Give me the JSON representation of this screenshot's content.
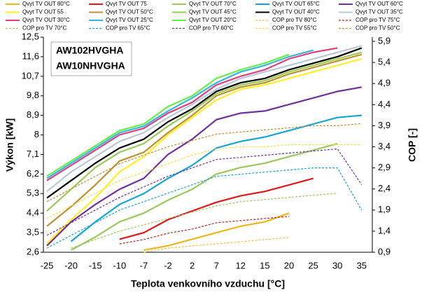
{
  "chart_data": {
    "type": "line",
    "annotations": [
      "AW102HVGHA",
      "AW10NHVGHA"
    ],
    "ylabel": "Výkon [kW]",
    "y2label": "COP [-]",
    "xlabel": "Teplota venkovního vzduchu [°C]",
    "categories": [
      "-25",
      "-20",
      "-15",
      "-10",
      "-7",
      "-2",
      "2",
      "7",
      "12",
      "15",
      "20",
      "25",
      "30",
      "35"
    ],
    "ylim": [
      2.6,
      12.5
    ],
    "yticks": [
      {
        "value": 2.6,
        "label": "2,6"
      },
      {
        "value": 3.5,
        "label": "3,5"
      },
      {
        "value": 4.4,
        "label": "4,4"
      },
      {
        "value": 5.3,
        "label": "5,3"
      },
      {
        "value": 6.2,
        "label": "6,2"
      },
      {
        "value": 7.1,
        "label": "7,1"
      },
      8,
      {
        "value": 8.9,
        "label": "8,9"
      },
      {
        "value": 9.8,
        "label": "9,8"
      },
      {
        "value": 10.7,
        "label": "10,7"
      },
      {
        "value": 11.6,
        "label": "11,6"
      },
      {
        "value": 12.5,
        "label": "12,5"
      }
    ],
    "y2lim": [
      0.9,
      6.0
    ],
    "y2ticks": [
      {
        "value": 0.9,
        "label": "0,9"
      },
      {
        "value": 1.4,
        "label": "1,4"
      },
      {
        "value": 1.9,
        "label": "1,9"
      },
      {
        "value": 2.4,
        "label": "2,4"
      },
      {
        "value": 2.9,
        "label": "2,9"
      },
      {
        "value": 3.4,
        "label": "3,4"
      },
      {
        "value": 3.9,
        "label": "3,9"
      },
      {
        "value": 4.4,
        "label": "4,4"
      },
      {
        "value": 4.9,
        "label": "4,9"
      },
      {
        "value": 5.4,
        "label": "5,4"
      },
      {
        "value": 5.9,
        "label": "5,9"
      }
    ],
    "series": [
      {
        "name": "Qvyt TV OUT 80°C",
        "color": "#f0b41e",
        "values": [
          null,
          null,
          null,
          null,
          2.7,
          2.9,
          3.2,
          3.5,
          3.8,
          4.0,
          4.4,
          null,
          null,
          null
        ]
      },
      {
        "name": "Qvyt TV OUT 75",
        "color": "#e01818",
        "values": [
          null,
          null,
          null,
          3.2,
          3.5,
          4.1,
          4.5,
          4.9,
          5.2,
          5.4,
          5.7,
          6.0,
          null,
          null
        ]
      },
      {
        "name": "Qvyt TV OUT 70°C",
        "color": "#9bc85a",
        "values": [
          null,
          2.7,
          3.3,
          4.0,
          4.4,
          5.0,
          5.5,
          6.2,
          6.5,
          6.7,
          7.0,
          7.3,
          7.6,
          null
        ]
      },
      {
        "name": "Qvyt TV OUT 65°C",
        "color": "#14a5d8",
        "values": [
          null,
          3.1,
          4.0,
          4.8,
          5.3,
          6.0,
          6.6,
          7.4,
          7.7,
          7.9,
          8.2,
          8.5,
          8.8,
          8.9
        ]
      },
      {
        "name": "Qvyt TV OUT 60°C",
        "color": "#7030a0",
        "values": [
          2.9,
          4.0,
          4.8,
          5.5,
          6.0,
          7.1,
          7.8,
          8.7,
          9.0,
          9.1,
          9.4,
          9.7,
          10.0,
          10.2
        ]
      },
      {
        "name": "Qvyt TV OUT 55",
        "color": "#ffee2a",
        "values": [
          3.0,
          4.1,
          5.1,
          6.3,
          7.0,
          8.0,
          8.8,
          9.6,
          10.1,
          10.3,
          10.6,
          10.9,
          11.2,
          11.5
        ]
      },
      {
        "name": "Qvyt TV OUT 50°C",
        "color": "#c09030",
        "values": [
          3.8,
          4.7,
          5.7,
          6.8,
          7.2,
          8.1,
          8.9,
          9.8,
          10.2,
          10.4,
          10.8,
          11.1,
          11.4,
          11.7
        ]
      },
      {
        "name": "Qvyt TV OUT 45°C",
        "color": "#99cc55",
        "values": [
          4.5,
          5.5,
          6.5,
          7.2,
          7.6,
          8.4,
          9.1,
          9.9,
          10.3,
          10.5,
          10.9,
          11.2,
          11.5,
          11.8
        ]
      },
      {
        "name": "Qvyt TV OUT 40°C",
        "color": "#000000",
        "values": [
          5.1,
          5.9,
          6.7,
          7.4,
          7.8,
          8.6,
          9.2,
          10.0,
          10.4,
          10.6,
          11.0,
          11.3,
          11.6,
          12.0
        ]
      },
      {
        "name": "Qvyt TV OUT 35°C",
        "color": "#b8c8d8",
        "values": [
          5.4,
          6.3,
          7.0,
          7.7,
          8.1,
          8.8,
          9.4,
          10.1,
          10.6,
          10.9,
          11.2,
          11.5,
          11.8,
          12.1
        ]
      },
      {
        "name": "Qvyt TV OUT 30°C",
        "color": "#e0407a",
        "values": [
          5.9,
          6.6,
          7.3,
          8.0,
          8.3,
          9.0,
          9.5,
          10.3,
          10.7,
          11.0,
          11.5,
          11.8,
          12.0,
          null
        ]
      },
      {
        "name": "Qvyt TV OUT 25°C",
        "color": "#30b8e0",
        "values": [
          6.0,
          6.7,
          7.4,
          8.1,
          8.4,
          9.1,
          9.7,
          10.4,
          10.9,
          11.2,
          11.6,
          11.9,
          null,
          null
        ]
      },
      {
        "name": "Qvyt TV OUT 20°C",
        "color": "#66ee44",
        "values": [
          6.1,
          6.8,
          7.5,
          8.2,
          8.5,
          9.3,
          9.8,
          10.6,
          11.0,
          11.3,
          11.7,
          null,
          null,
          null
        ]
      },
      {
        "name": "COP pro TV 80°C",
        "color": "#f0c040",
        "axis": "y2",
        "values": [
          null,
          null,
          null,
          null,
          0.9,
          1.0,
          1.05,
          1.1,
          1.15,
          1.2,
          1.25,
          null,
          null,
          null
        ]
      },
      {
        "name": "COP pro TV 75°C",
        "color": "#c02020",
        "axis": "y2",
        "values": [
          null,
          null,
          null,
          1.1,
          1.2,
          1.35,
          1.45,
          1.6,
          1.65,
          1.7,
          1.75,
          null,
          null,
          null
        ]
      },
      {
        "name": "COP pro TV 70°C",
        "color": "#9bc85a",
        "axis": "y2",
        "values": [
          null,
          1.0,
          1.2,
          1.4,
          1.55,
          1.7,
          1.85,
          2.0,
          2.1,
          2.15,
          2.2,
          2.25,
          2.3,
          null
        ]
      },
      {
        "name": "COP pro TV 65°C",
        "color": "#14a5d8",
        "axis": "y2",
        "values": [
          1.0,
          1.3,
          1.6,
          1.9,
          2.1,
          2.3,
          2.5,
          2.7,
          2.75,
          2.8,
          2.85,
          2.9,
          2.9,
          1.9
        ]
      },
      {
        "name": "COP pro TV 60°C",
        "color": "#7030a0",
        "axis": "y2",
        "values": [
          1.3,
          1.6,
          1.9,
          2.2,
          2.45,
          2.7,
          2.9,
          3.1,
          3.15,
          3.2,
          3.25,
          3.3,
          3.35,
          2.5
        ]
      },
      {
        "name": "COP pro TV 55°C",
        "color": "#f0e040",
        "axis": "y2",
        "values": [
          1.7,
          2.0,
          2.3,
          2.6,
          2.8,
          3.0,
          3.2,
          3.35,
          3.4,
          3.4,
          3.45,
          3.45,
          3.45,
          3.45
        ]
      },
      {
        "name": "COP pro TV 50°C",
        "color": "#c09030",
        "axis": "y2",
        "values": [
          2.1,
          2.4,
          2.7,
          3.0,
          3.2,
          3.4,
          3.55,
          3.7,
          3.75,
          3.8,
          3.85,
          3.9,
          3.9,
          3.95
        ]
      }
    ]
  }
}
